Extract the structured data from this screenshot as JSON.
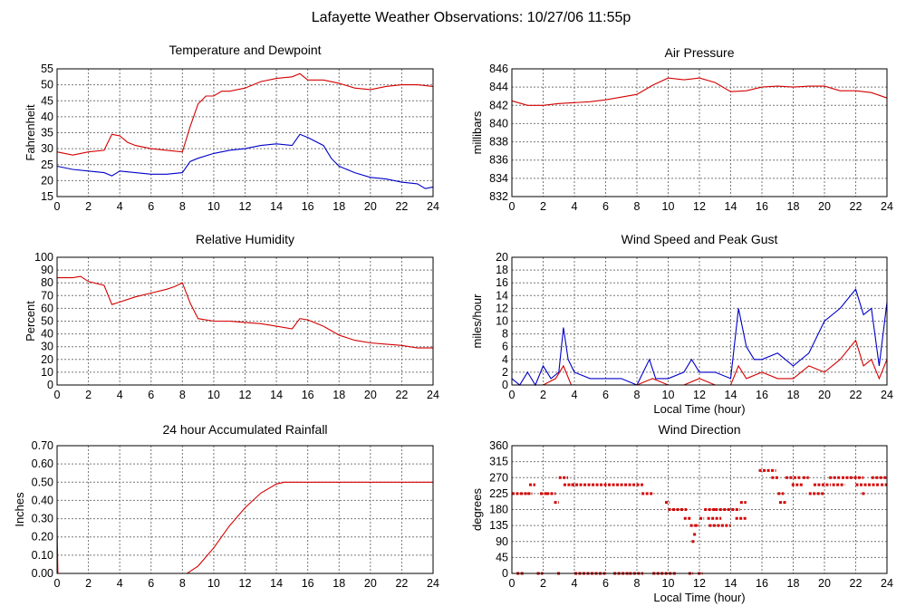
{
  "page_title": "Lafayette Weather Observations: 10/27/06 11:55p",
  "colors": {
    "red": "#d40000",
    "blue": "#0000c8",
    "grid": "#777777"
  },
  "chart_data": [
    {
      "id": "temp",
      "type": "line",
      "title": "Temperature and Dewpoint",
      "xlabel": "",
      "ylabel": "Fahrenheit",
      "xlim": [
        0,
        24
      ],
      "ylim": [
        15,
        55
      ],
      "xticks": [
        0,
        2,
        4,
        6,
        8,
        10,
        12,
        14,
        16,
        18,
        20,
        22,
        24
      ],
      "yticks": [
        15,
        20,
        25,
        30,
        35,
        40,
        45,
        50,
        55
      ],
      "grid": true,
      "series": [
        {
          "color": "red",
          "x": [
            0,
            1,
            2,
            3,
            3.5,
            4,
            4.5,
            5,
            6,
            7,
            8,
            8.5,
            9,
            9.5,
            10,
            10.5,
            11,
            12,
            13,
            14,
            15,
            15.5,
            16,
            17,
            18,
            19,
            20,
            21,
            22,
            23,
            24
          ],
          "y": [
            29,
            28,
            29,
            29.5,
            34.5,
            34,
            32,
            31,
            30,
            29.5,
            29,
            37,
            44,
            46.5,
            46.5,
            48,
            48,
            49,
            51,
            52,
            52.5,
            53.5,
            51.5,
            51.5,
            50.5,
            49,
            48.5,
            49.5,
            50,
            50,
            49.5
          ]
        },
        {
          "color": "blue",
          "x": [
            0,
            1,
            2,
            3,
            3.5,
            4,
            5,
            6,
            7,
            8,
            8.5,
            9,
            10,
            11,
            12,
            13,
            14,
            15,
            15.5,
            16,
            17,
            17.5,
            18,
            19,
            20,
            21,
            22,
            23,
            23.5,
            24
          ],
          "y": [
            24.5,
            23.5,
            23,
            22.5,
            21.5,
            23,
            22.5,
            22,
            22,
            22.5,
            26,
            27,
            28.5,
            29.5,
            30,
            31,
            31.5,
            31,
            34.5,
            33.5,
            31,
            27,
            24.5,
            22.5,
            21,
            20.5,
            19.5,
            19,
            17.5,
            18
          ]
        }
      ]
    },
    {
      "id": "pressure",
      "type": "line",
      "title": "Air Pressure",
      "xlabel": "",
      "ylabel": "millibars",
      "xlim": [
        0,
        24
      ],
      "ylim": [
        832,
        846
      ],
      "xticks": [
        0,
        2,
        4,
        6,
        8,
        10,
        12,
        14,
        16,
        18,
        20,
        22,
        24
      ],
      "yticks": [
        832,
        834,
        836,
        838,
        840,
        842,
        844,
        846
      ],
      "grid": true,
      "series": [
        {
          "color": "red",
          "x": [
            0,
            1,
            2,
            3,
            4,
            5,
            6,
            7,
            8,
            9,
            10,
            11,
            12,
            13,
            14,
            15,
            16,
            17,
            18,
            19,
            20,
            21,
            22,
            23,
            24
          ],
          "y": [
            842.5,
            842,
            842,
            842.2,
            842.3,
            842.4,
            842.6,
            842.9,
            843.2,
            844.2,
            845,
            844.8,
            845,
            844.5,
            843.5,
            843.6,
            844,
            844.1,
            844,
            844.1,
            844.1,
            843.6,
            843.6,
            843.4,
            842.8
          ]
        }
      ]
    },
    {
      "id": "humidity",
      "type": "line",
      "title": "Relative Humidity",
      "xlabel": "",
      "ylabel": "Percent",
      "xlim": [
        0,
        24
      ],
      "ylim": [
        0,
        100
      ],
      "xticks": [
        0,
        2,
        4,
        6,
        8,
        10,
        12,
        14,
        16,
        18,
        20,
        22,
        24
      ],
      "yticks": [
        0,
        10,
        20,
        30,
        40,
        50,
        60,
        70,
        80,
        90,
        100
      ],
      "grid": true,
      "series": [
        {
          "color": "red",
          "x": [
            0,
            1,
            1.5,
            2,
            3,
            3.5,
            4,
            5,
            6,
            7,
            7.5,
            8,
            8.5,
            9,
            10,
            11,
            12,
            13,
            14,
            15,
            15.5,
            16,
            17,
            18,
            19,
            20,
            21,
            22,
            23,
            24
          ],
          "y": [
            84,
            84,
            85,
            81,
            78,
            63,
            65,
            69,
            72,
            75,
            77,
            80,
            64,
            52,
            50,
            50,
            49,
            48,
            46,
            44,
            52,
            51,
            46,
            39,
            35,
            33,
            32,
            31,
            29,
            29
          ]
        }
      ]
    },
    {
      "id": "wind",
      "type": "line",
      "title": "Wind Speed and Peak Gust",
      "xlabel": "Local Time (hour)",
      "ylabel": "miles/hour",
      "xlim": [
        0,
        24
      ],
      "ylim": [
        0,
        20
      ],
      "xticks": [
        0,
        2,
        4,
        6,
        8,
        10,
        12,
        14,
        16,
        18,
        20,
        22,
        24
      ],
      "yticks": [
        0,
        2,
        4,
        6,
        8,
        10,
        12,
        14,
        16,
        18,
        20
      ],
      "grid": true,
      "series": [
        {
          "color": "blue",
          "x": [
            0,
            0.5,
            1,
            1.5,
            2,
            2.5,
            3,
            3.3,
            3.6,
            4,
            5,
            6,
            7,
            8,
            8.8,
            9.2,
            10,
            11,
            11.5,
            12,
            13,
            14,
            14.5,
            15,
            15.5,
            16,
            17,
            18,
            19,
            20,
            21,
            22,
            22.5,
            23,
            23.5,
            24
          ],
          "y": [
            1,
            0,
            2,
            0,
            3,
            1,
            2,
            9,
            4,
            2,
            1,
            1,
            1,
            0,
            4,
            1,
            1,
            2,
            4,
            2,
            2,
            1,
            12,
            6,
            4,
            4,
            5,
            3,
            5,
            10,
            12,
            15,
            11,
            12,
            3,
            13
          ]
        },
        {
          "color": "red",
          "x": [
            0,
            1,
            2,
            2.8,
            3.3,
            3.8,
            5,
            6,
            7,
            8,
            9,
            10,
            11,
            12,
            13,
            14,
            14.5,
            15,
            16,
            17,
            18,
            19,
            20,
            21,
            22,
            22.5,
            23,
            23.5,
            24
          ],
          "y": [
            0,
            0,
            0,
            1,
            3,
            0,
            0,
            0,
            0,
            0,
            1,
            0,
            0,
            1,
            0,
            0,
            3,
            1,
            2,
            1,
            1,
            3,
            2,
            4,
            7,
            3,
            4,
            1,
            4
          ]
        }
      ]
    },
    {
      "id": "rain",
      "type": "line",
      "title": "24 hour Accumulated Rainfall",
      "xlabel": "",
      "ylabel": "Inches",
      "xlim": [
        0,
        24
      ],
      "ylim": [
        0,
        0.7
      ],
      "xticks": [
        0,
        2,
        4,
        6,
        8,
        10,
        12,
        14,
        16,
        18,
        20,
        22,
        24
      ],
      "yticks": [
        "0.00",
        "0.10",
        "0.20",
        "0.30",
        "0.40",
        "0.50",
        "0.60",
        "0.70"
      ],
      "grid": true,
      "series": [
        {
          "color": "red",
          "x": [
            0,
            0.02,
            0.05,
            2,
            8.3,
            9,
            10,
            11,
            12,
            13,
            14,
            14.5,
            16,
            24
          ],
          "y": [
            0.31,
            0.16,
            0,
            0,
            0,
            0.04,
            0.14,
            0.26,
            0.36,
            0.44,
            0.49,
            0.5,
            0.5,
            0.5
          ]
        }
      ]
    },
    {
      "id": "direction",
      "type": "scatter",
      "title": "Wind Direction",
      "xlabel": "Local Time (hour)",
      "ylabel": "degrees",
      "xlim": [
        0,
        24
      ],
      "ylim": [
        0,
        360
      ],
      "xticks": [
        0,
        2,
        4,
        6,
        8,
        10,
        12,
        14,
        16,
        18,
        20,
        22,
        24
      ],
      "yticks": [
        0,
        45,
        90,
        135,
        180,
        225,
        270,
        315,
        360
      ],
      "grid": true,
      "series": [
        {
          "color": "red",
          "segments": [
            [
              0,
              1.0,
              225
            ],
            [
              0.3,
              0.8,
              0
            ],
            [
              1.0,
              1.3,
              225
            ],
            [
              1.1,
              1.5,
              250
            ],
            [
              1.6,
              2.0,
              0
            ],
            [
              1.8,
              2.2,
              225
            ],
            [
              2.2,
              2.8,
              225
            ],
            [
              2.7,
              3.0,
              200
            ],
            [
              2.9,
              3.1,
              0
            ],
            [
              3.0,
              3.6,
              270
            ],
            [
              3.3,
              4.2,
              250
            ],
            [
              4.0,
              6.0,
              0
            ],
            [
              3.8,
              8.4,
              250
            ],
            [
              6.5,
              7.5,
              0
            ],
            [
              7.5,
              8.4,
              0
            ],
            [
              8.3,
              9.0,
              225
            ],
            [
              9.0,
              10.5,
              0
            ],
            [
              9.8,
              10.1,
              200
            ],
            [
              10.0,
              11.2,
              180
            ],
            [
              11.0,
              11.5,
              155
            ],
            [
              11.3,
              11.6,
              0
            ],
            [
              11.4,
              11.7,
              135
            ],
            [
              11.5,
              11.7,
              90
            ],
            [
              11.6,
              11.8,
              110
            ],
            [
              11.7,
              12.0,
              135
            ],
            [
              11.9,
              12.2,
              0
            ],
            [
              12.0,
              12.3,
              155
            ],
            [
              12.3,
              13.0,
              180
            ],
            [
              12.5,
              13.4,
              155
            ],
            [
              12.6,
              14.0,
              135
            ],
            [
              13.0,
              14.6,
              180
            ],
            [
              14.3,
              15.0,
              155
            ],
            [
              14.6,
              15.0,
              200
            ],
            [
              15.8,
              16.9,
              290
            ],
            [
              16.6,
              17.1,
              270
            ],
            [
              17.0,
              17.4,
              225
            ],
            [
              17.1,
              17.6,
              200
            ],
            [
              17.5,
              18.5,
              270
            ],
            [
              17.9,
              18.6,
              250
            ],
            [
              18.6,
              19.0,
              270
            ],
            [
              19.0,
              20.0,
              225
            ],
            [
              19.3,
              20.4,
              250
            ],
            [
              20.3,
              21.0,
              270
            ],
            [
              20.5,
              21.3,
              250
            ],
            [
              21.1,
              22.5,
              270
            ],
            [
              22.0,
              23.5,
              250
            ],
            [
              22.4,
              22.6,
              225
            ],
            [
              23.0,
              24.0,
              270
            ],
            [
              23.6,
              24.0,
              250
            ]
          ]
        }
      ]
    }
  ]
}
